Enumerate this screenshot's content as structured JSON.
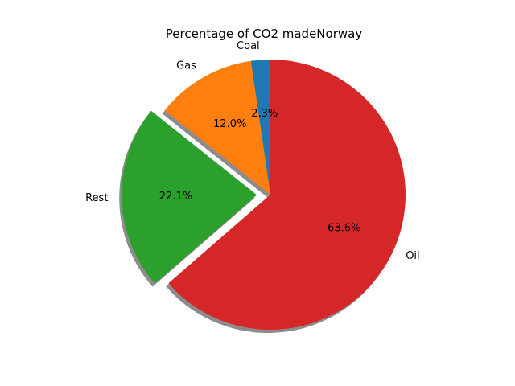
{
  "chart_data": {
    "type": "pie",
    "title": "Percentage of CO2 madeNorway",
    "categories": [
      "Coal",
      "Gas",
      "Rest",
      "Oil"
    ],
    "values": [
      2.3,
      12.0,
      22.1,
      63.6
    ],
    "percent_labels": [
      "2.3%",
      "12.0%",
      "22.1%",
      "63.6%"
    ],
    "colors": [
      "#1f77b4",
      "#ff7f0e",
      "#2ca02c",
      "#d62728"
    ],
    "exploded": [
      "Rest"
    ],
    "shadow": true,
    "start_angle_deg": 90,
    "direction": "counterclockwise",
    "legend": "none"
  }
}
